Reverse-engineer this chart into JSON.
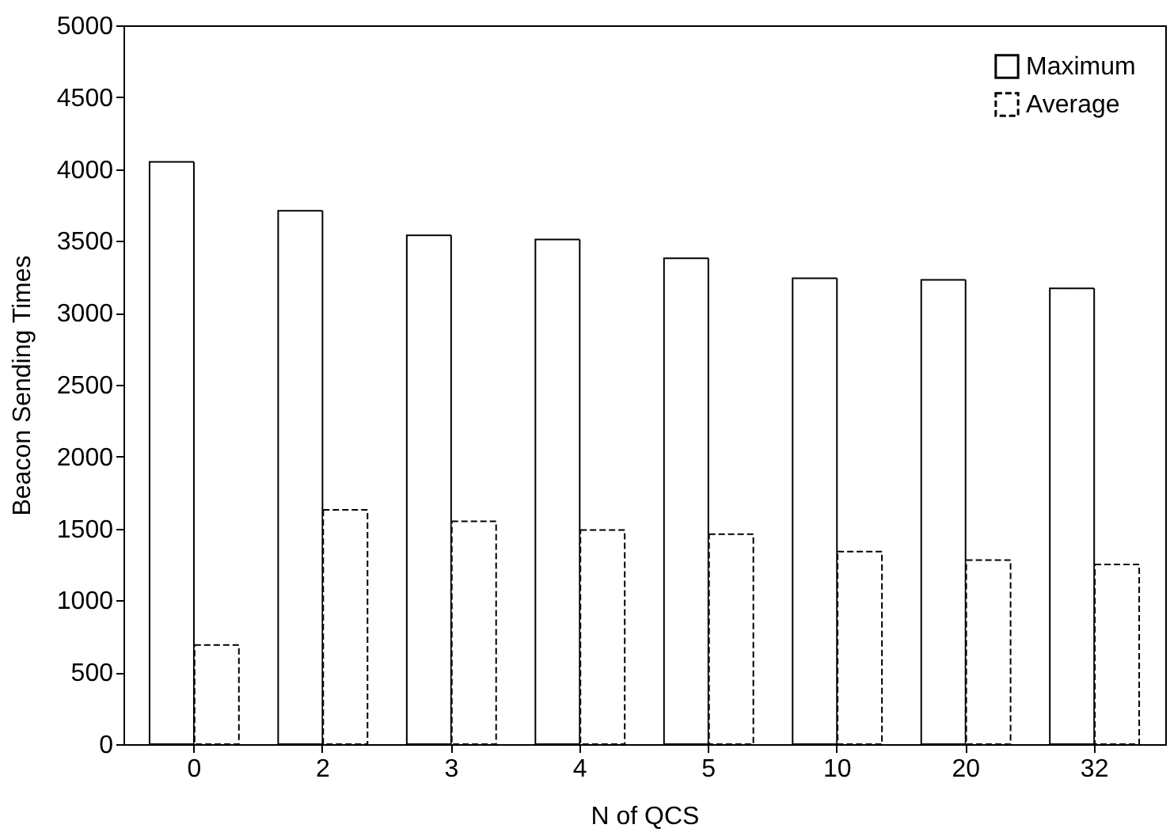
{
  "chart_data": {
    "type": "bar",
    "xlabel": "N of QCS",
    "ylabel": "Beacon Sending Times",
    "categories": [
      "0",
      "2",
      "3",
      "4",
      "5",
      "10",
      "20",
      "32"
    ],
    "series": [
      {
        "name": "Maximum",
        "color": "#000000",
        "line_style": "solid",
        "values": [
          4050,
          3710,
          3540,
          3510,
          3380,
          3240,
          3230,
          3170
        ]
      },
      {
        "name": "Average",
        "color": "#000000",
        "line_style": "dashed",
        "values": [
          690,
          1630,
          1550,
          1490,
          1460,
          1340,
          1280,
          1250
        ]
      }
    ],
    "ylim": [
      0,
      5000
    ],
    "yticks": [
      0,
      500,
      1000,
      1500,
      2000,
      2500,
      3000,
      3500,
      4000,
      4500,
      5000
    ],
    "grid": false,
    "legend": "top right"
  }
}
